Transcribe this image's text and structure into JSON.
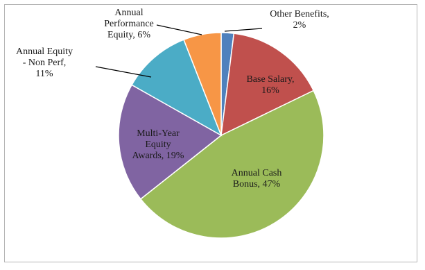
{
  "chart_data": {
    "type": "pie",
    "slices": [
      {
        "label": "Other Benefits, 2%",
        "label_lines": [
          "Other Benefits,",
          "2%"
        ],
        "value": 2,
        "color": "#4f81bd"
      },
      {
        "label": "Base Salary, 16%",
        "label_lines": [
          "Base Salary,",
          "16%"
        ],
        "value": 16,
        "color": "#c0504d"
      },
      {
        "label": "Annual Cash Bonus, 47%",
        "label_lines": [
          "Annual Cash",
          "Bonus, 47%"
        ],
        "value": 47,
        "color": "#9bbb59"
      },
      {
        "label": "Multi-Year Equity Awards, 19%",
        "label_lines": [
          "Multi-Year",
          "Equity",
          "Awards, 19%"
        ],
        "value": 19,
        "color": "#8064a2"
      },
      {
        "label": "Annual Equity - Non Perf, 11%",
        "label_lines": [
          "Annual Equity",
          "- Non Perf,",
          "11%"
        ],
        "value": 11,
        "color": "#4bacc6"
      },
      {
        "label": "Annual Performance Equity, 6%",
        "label_lines": [
          "Annual",
          "Performance",
          "Equity, 6%"
        ],
        "value": 6,
        "color": "#f79646"
      }
    ],
    "start_angle": "12 o'clock",
    "direction": "clockwise",
    "legend": "none"
  }
}
